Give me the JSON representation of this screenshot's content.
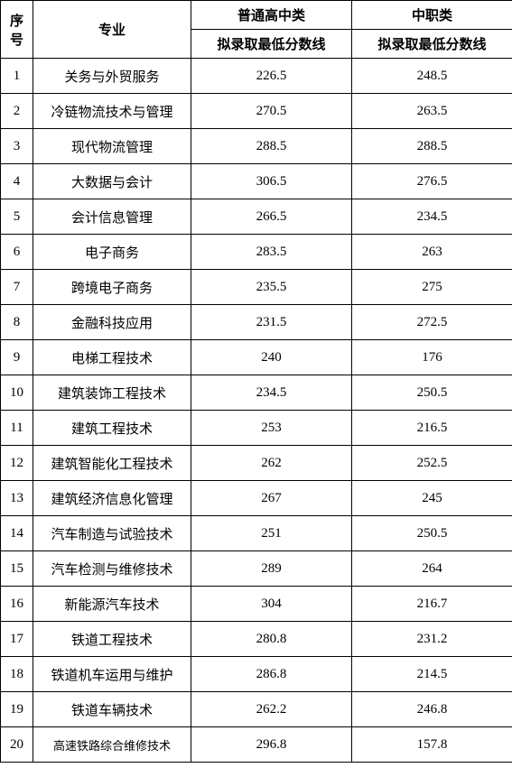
{
  "table": {
    "columns": {
      "seq": "序号",
      "major": "专业",
      "general_high": "普通高中类",
      "vocational": "中职类",
      "score_line": "拟录取最低分数线"
    },
    "col_widths": {
      "seq": 36,
      "major": 175,
      "score": 178
    },
    "font_family": "SimSun",
    "font_size_normal": 15,
    "font_size_small": 13,
    "border_color": "#000000",
    "background_color": "#ffffff",
    "text_color": "#000000",
    "header_row_height": 32,
    "body_row_height": 39,
    "rows": [
      {
        "seq": "1",
        "major": "关务与外贸服务",
        "gh": "226.5",
        "voc": "248.5"
      },
      {
        "seq": "2",
        "major": "冷链物流技术与管理",
        "gh": "270.5",
        "voc": "263.5"
      },
      {
        "seq": "3",
        "major": "现代物流管理",
        "gh": "288.5",
        "voc": "288.5"
      },
      {
        "seq": "4",
        "major": "大数据与会计",
        "gh": "306.5",
        "voc": "276.5"
      },
      {
        "seq": "5",
        "major": "会计信息管理",
        "gh": "266.5",
        "voc": "234.5"
      },
      {
        "seq": "6",
        "major": "电子商务",
        "gh": "283.5",
        "voc": "263"
      },
      {
        "seq": "7",
        "major": "跨境电子商务",
        "gh": "235.5",
        "voc": "275"
      },
      {
        "seq": "8",
        "major": "金融科技应用",
        "gh": "231.5",
        "voc": "272.5"
      },
      {
        "seq": "9",
        "major": "电梯工程技术",
        "gh": "240",
        "voc": "176"
      },
      {
        "seq": "10",
        "major": "建筑装饰工程技术",
        "gh": "234.5",
        "voc": "250.5"
      },
      {
        "seq": "11",
        "major": "建筑工程技术",
        "gh": "253",
        "voc": "216.5"
      },
      {
        "seq": "12",
        "major": "建筑智能化工程技术",
        "gh": "262",
        "voc": "252.5"
      },
      {
        "seq": "13",
        "major": "建筑经济信息化管理",
        "gh": "267",
        "voc": "245"
      },
      {
        "seq": "14",
        "major": "汽车制造与试验技术",
        "gh": "251",
        "voc": "250.5"
      },
      {
        "seq": "15",
        "major": "汽车检测与维修技术",
        "gh": "289",
        "voc": "264"
      },
      {
        "seq": "16",
        "major": "新能源汽车技术",
        "gh": "304",
        "voc": "216.7"
      },
      {
        "seq": "17",
        "major": "铁道工程技术",
        "gh": "280.8",
        "voc": "231.2"
      },
      {
        "seq": "18",
        "major": "铁道机车运用与维护",
        "gh": "286.8",
        "voc": "214.5"
      },
      {
        "seq": "19",
        "major": "铁道车辆技术",
        "gh": "262.2",
        "voc": "246.8"
      },
      {
        "seq": "20",
        "major": "高速铁路综合维修技术",
        "gh": "296.8",
        "voc": "157.8",
        "small": true
      }
    ]
  }
}
